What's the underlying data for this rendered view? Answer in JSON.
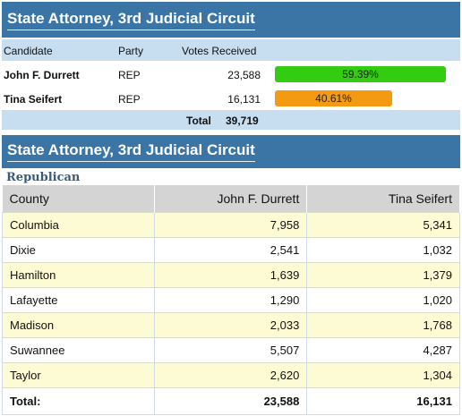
{
  "summary": {
    "title": "State Attorney, 3rd Judicial Circuit",
    "headers": {
      "candidate": "Candidate",
      "party": "Party",
      "votes": "Votes Received"
    },
    "candidates": [
      {
        "name": "John F. Durrett",
        "party": "REP",
        "votes": "23,588",
        "percent": "59.39%",
        "share": 0.5939,
        "color": "#33cc11"
      },
      {
        "name": "Tina Seifert",
        "party": "REP",
        "votes": "16,131",
        "percent": "40.61%",
        "share": 0.4061,
        "color": "#f39a12"
      }
    ],
    "total_label": "Total",
    "total_votes": "39,719"
  },
  "detail": {
    "title": "State Attorney, 3rd Judicial Circuit",
    "party_label": "Republican",
    "headers": {
      "county": "County",
      "candidate1": "John F. Durrett",
      "candidate2": "Tina Seifert"
    },
    "rows": [
      {
        "county": "Columbia",
        "c1": "7,958",
        "c2": "5,341"
      },
      {
        "county": "Dixie",
        "c1": "2,541",
        "c2": "1,032"
      },
      {
        "county": "Hamilton",
        "c1": "1,639",
        "c2": "1,379"
      },
      {
        "county": "Lafayette",
        "c1": "1,290",
        "c2": "1,020"
      },
      {
        "county": "Madison",
        "c1": "2,033",
        "c2": "1,768"
      },
      {
        "county": "Suwannee",
        "c1": "5,507",
        "c2": "4,287"
      },
      {
        "county": "Taylor",
        "c1": "2,620",
        "c2": "1,304"
      }
    ],
    "total": {
      "label": "Total:",
      "c1": "23,588",
      "c2": "16,131"
    }
  }
}
